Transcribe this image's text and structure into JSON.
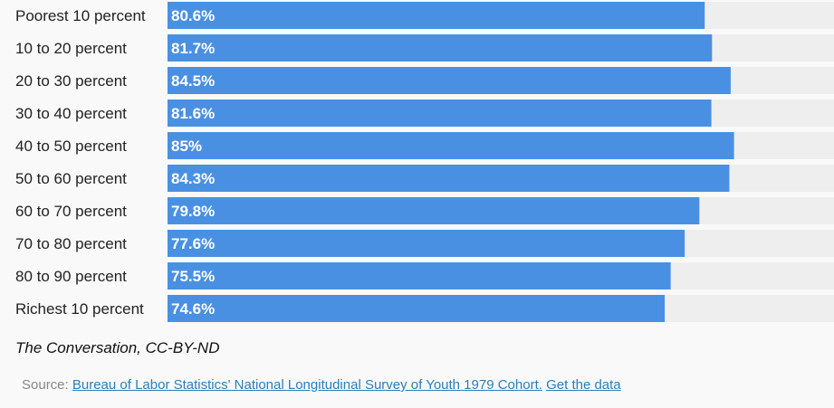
{
  "chart_data": {
    "type": "bar",
    "orientation": "horizontal",
    "categories": [
      "Poorest 10 percent",
      "10 to 20 percent",
      "20 to 30 percent",
      "30 to 40 percent",
      "40 to 50 percent",
      "50 to 60 percent",
      "60 to 70 percent",
      "70 to 80 percent",
      "80 to 90 percent",
      "Richest 10 percent"
    ],
    "values": [
      80.6,
      81.7,
      84.5,
      81.6,
      85,
      84.3,
      79.8,
      77.6,
      75.5,
      74.6
    ],
    "value_labels": [
      "80.6%",
      "81.7%",
      "84.5%",
      "81.6%",
      "85%",
      "84.3%",
      "79.8%",
      "77.6%",
      "75.5%",
      "74.6%"
    ],
    "xlim": [
      0,
      100
    ],
    "grid": false,
    "legend": "none",
    "colors": {
      "bar": "#4a90e2",
      "track": "#eeeeee"
    }
  },
  "footer": {
    "credit": "The Conversation, CC-BY-ND",
    "source_prefix": "Source:",
    "source_link": "Bureau of Labor Statistics' National Longitudinal Survey of Youth 1979 Cohort.",
    "data_link": "Get the data"
  }
}
